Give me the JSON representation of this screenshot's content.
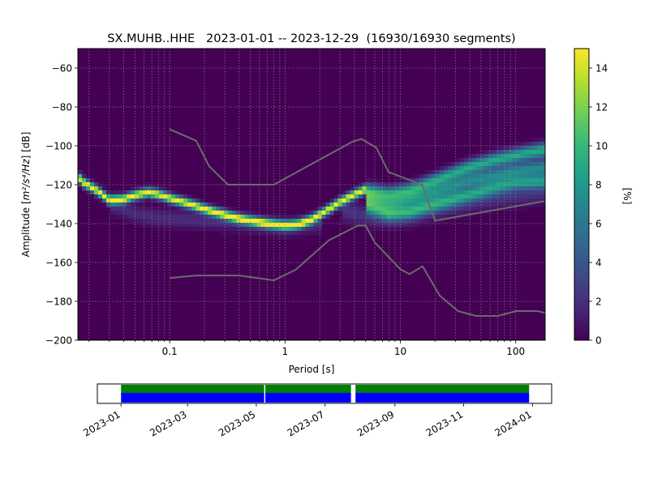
{
  "chart_data": [
    {
      "type": "heatmap",
      "title": "SX.MUHB..HHE   2023-01-01 -- 2023-12-29  (16930/16930 segments)",
      "xlabel": "Period [s]",
      "ylabel_main": "Amplitude [",
      "ylabel_math": "m²/s⁴/Hz",
      "ylabel_tail": "] [dB]",
      "x_scale": "log",
      "xlim": [
        0.016,
        180
      ],
      "ylim": [
        -200,
        -50
      ],
      "x_ticks": [
        {
          "value": 0.1,
          "label": "0.1"
        },
        {
          "value": 1,
          "label": "1"
        },
        {
          "value": 10,
          "label": "10"
        },
        {
          "value": 100,
          "label": "100"
        }
      ],
      "y_ticks": [
        {
          "value": -60,
          "label": "−60"
        },
        {
          "value": -80,
          "label": "−80"
        },
        {
          "value": -100,
          "label": "−100"
        },
        {
          "value": -120,
          "label": "−120"
        },
        {
          "value": -140,
          "label": "−140"
        },
        {
          "value": -160,
          "label": "−160"
        },
        {
          "value": -180,
          "label": "−180"
        },
        {
          "value": -200,
          "label": "−200"
        }
      ],
      "grid": true,
      "colormap": "viridis",
      "colorbar": {
        "label": "[%]",
        "range": [
          0,
          15
        ],
        "ticks": [
          {
            "value": 0,
            "label": "0"
          },
          {
            "value": 2,
            "label": "2"
          },
          {
            "value": 4,
            "label": "4"
          },
          {
            "value": 6,
            "label": "6"
          },
          {
            "value": 8,
            "label": "8"
          },
          {
            "value": 10,
            "label": "10"
          },
          {
            "value": 12,
            "label": "12"
          },
          {
            "value": 14,
            "label": "14"
          }
        ]
      },
      "ppsd_bands": [
        {
          "points": [
            [
              0.016,
              -116
            ],
            [
              0.018,
              -119
            ],
            [
              0.022,
              -122
            ],
            [
              0.026,
              -125
            ],
            [
              0.03,
              -128
            ],
            [
              0.04,
              -127.5
            ],
            [
              0.05,
              -125.5
            ],
            [
              0.065,
              -124
            ],
            [
              0.08,
              -125
            ],
            [
              0.1,
              -127
            ],
            [
              0.15,
              -130
            ],
            [
              0.2,
              -132.5
            ],
            [
              0.3,
              -135.5
            ],
            [
              0.4,
              -137.5
            ],
            [
              0.5,
              -138.5
            ],
            [
              0.7,
              -140
            ],
            [
              1,
              -141
            ],
            [
              1.3,
              -140.5
            ],
            [
              1.7,
              -138
            ],
            [
              2.2,
              -134
            ],
            [
              3,
              -129
            ],
            [
              4,
              -125
            ],
            [
              5,
              -122.5
            ]
          ],
          "spread": 1.6,
          "peak": 15
        },
        {
          "points": [
            [
              5,
              -123
            ],
            [
              8,
              -125
            ],
            [
              12,
              -123
            ],
            [
              20,
              -118
            ],
            [
              40,
              -111
            ],
            [
              70,
              -107
            ],
            [
              100,
              -105
            ],
            [
              180,
              -102
            ]
          ],
          "spread": 2.5,
          "peak": 9
        },
        {
          "points": [
            [
              5,
              -127
            ],
            [
              8,
              -130
            ],
            [
              12,
              -128
            ],
            [
              20,
              -124
            ],
            [
              40,
              -118
            ],
            [
              70,
              -115
            ],
            [
              100,
              -113
            ],
            [
              180,
              -111
            ]
          ],
          "spread": 2.5,
          "peak": 7
        },
        {
          "points": [
            [
              5,
              -131
            ],
            [
              8,
              -135
            ],
            [
              12,
              -134
            ],
            [
              20,
              -130
            ],
            [
              40,
              -125
            ],
            [
              70,
              -121
            ],
            [
              100,
              -119
            ],
            [
              180,
              -118
            ]
          ],
          "spread": 2.5,
          "peak": 8
        },
        {
          "points": [
            [
              0.03,
              -130
            ],
            [
              0.05,
              -135
            ],
            [
              0.08,
              -137
            ],
            [
              0.15,
              -138
            ],
            [
              0.3,
              -139
            ],
            [
              1,
              -142
            ],
            [
              2,
              -140
            ]
          ],
          "spread": 3,
          "peak": 1.8
        },
        {
          "points": [
            [
              3,
              -133
            ],
            [
              6,
              -137
            ],
            [
              10,
              -137
            ],
            [
              20,
              -133
            ],
            [
              50,
              -128
            ],
            [
              180,
              -124
            ]
          ],
          "spread": 3.5,
          "peak": 2.2
        }
      ],
      "series": [
        {
          "color": "#6b6b6b",
          "x": [
            0.1,
            0.17,
            0.22,
            0.32,
            0.8,
            3.8,
            4.6,
            6.2,
            7.9,
            15.4,
            20,
            176.3
          ],
          "y": [
            -91.5,
            -97.4,
            -110.5,
            -120,
            -120,
            -98,
            -96.5,
            -101,
            -113.5,
            -120,
            -138.5,
            -128.5
          ]
        },
        {
          "color": "#6b6b6b",
          "x": [
            0.1,
            0.17,
            0.4,
            0.8,
            1.24,
            2.4,
            4.3,
            5,
            6,
            10,
            12,
            15.6,
            21.9,
            31.6,
            45,
            70,
            101,
            154,
            180
          ],
          "y": [
            -168,
            -166.7,
            -166.7,
            -169.2,
            -163.7,
            -148.6,
            -141,
            -141,
            -149.7,
            -163.5,
            -166,
            -162,
            -177,
            -185,
            -187.5,
            -187.5,
            -185,
            -185,
            -186
          ]
        }
      ]
    },
    {
      "type": "bar",
      "xlim": [
        "2022-12-11",
        "2024-01-18"
      ],
      "x_ticks": [
        "2023-01",
        "2023-03",
        "2023-05",
        "2023-07",
        "2023-09",
        "2023-11",
        "2024-01"
      ],
      "coverage_upper": {
        "color": "#008000",
        "segments": [
          [
            "2023-01-01",
            "2023-05-08"
          ],
          [
            "2023-05-09",
            "2023-07-24"
          ],
          [
            "2023-07-28",
            "2023-12-29"
          ]
        ]
      },
      "coverage_lower": {
        "color": "#0000ff",
        "segments": [
          [
            "2023-01-01",
            "2023-05-08"
          ],
          [
            "2023-05-09",
            "2023-07-24"
          ],
          [
            "2023-07-28",
            "2023-12-29"
          ]
        ]
      }
    }
  ]
}
